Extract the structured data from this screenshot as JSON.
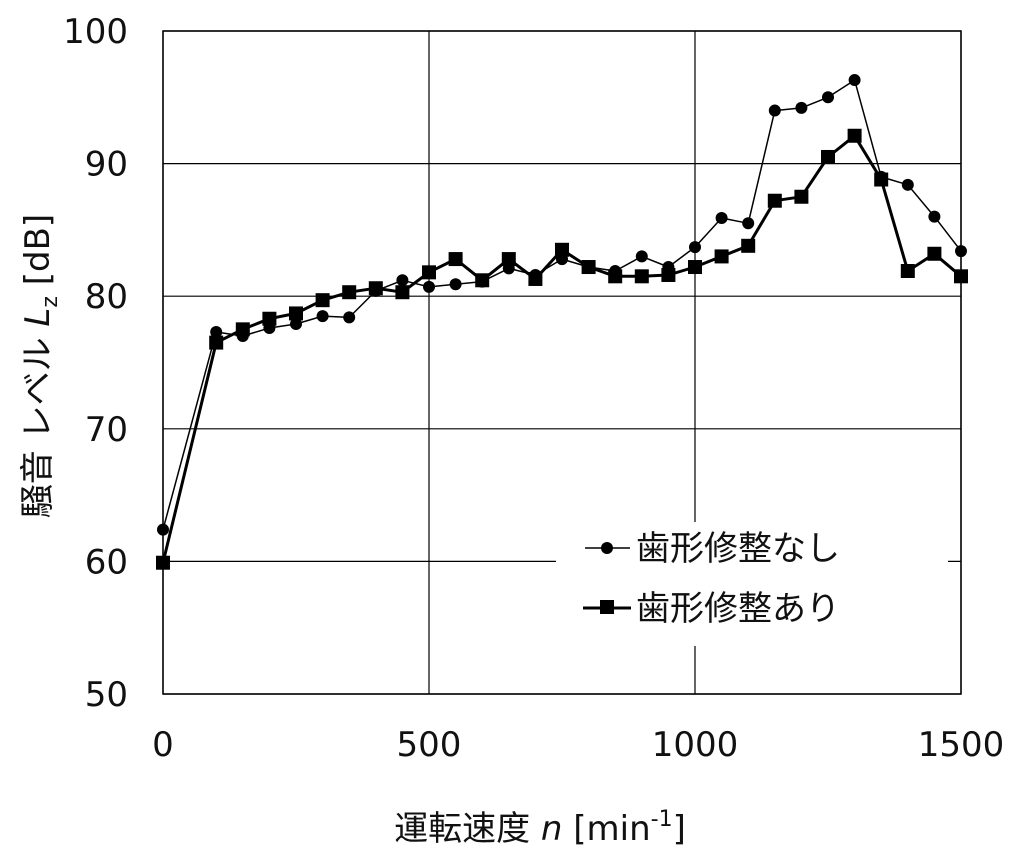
{
  "chart_data": {
    "type": "line",
    "xlabel": {
      "main": "運転速度",
      "var": "n",
      "unit_pre": " [min",
      "unit_sup": "-1",
      "unit_post": "]"
    },
    "ylabel": {
      "main": "騒音 レベル ",
      "var": "L",
      "sub": "z",
      "unit": " [dB]"
    },
    "xlim": [
      0,
      1500
    ],
    "ylim": [
      50,
      100
    ],
    "xticks": [
      0,
      500,
      1000,
      1500
    ],
    "yticks": [
      50,
      60,
      70,
      80,
      90,
      100
    ],
    "grid": true,
    "legend_position": "bottom-right",
    "series": [
      {
        "name": "歯形修整なし",
        "marker": "circle",
        "color": "#000000",
        "x": [
          0,
          100,
          150,
          200,
          250,
          300,
          350,
          400,
          450,
          500,
          550,
          600,
          650,
          700,
          750,
          800,
          850,
          900,
          950,
          1000,
          1050,
          1100,
          1150,
          1200,
          1250,
          1300,
          1350,
          1400,
          1450,
          1500
        ],
        "y": [
          62.4,
          77.3,
          77.0,
          77.6,
          77.9,
          78.5,
          78.4,
          80.4,
          81.2,
          80.7,
          80.9,
          81.1,
          82.1,
          81.6,
          82.8,
          82.2,
          81.9,
          83.0,
          82.2,
          83.7,
          85.9,
          85.5,
          94.0,
          94.2,
          95.0,
          96.3,
          89.0,
          88.4,
          86.0,
          83.4
        ]
      },
      {
        "name": "歯形修整あり",
        "marker": "square",
        "color": "#000000",
        "x": [
          0,
          100,
          150,
          200,
          250,
          300,
          350,
          400,
          450,
          500,
          550,
          600,
          650,
          700,
          750,
          800,
          850,
          900,
          950,
          1000,
          1050,
          1100,
          1150,
          1200,
          1250,
          1300,
          1350,
          1400,
          1450,
          1500
        ],
        "y": [
          59.9,
          76.5,
          77.5,
          78.3,
          78.7,
          79.7,
          80.3,
          80.6,
          80.3,
          81.8,
          82.8,
          81.2,
          82.8,
          81.3,
          83.5,
          82.2,
          81.5,
          81.5,
          81.6,
          82.2,
          83.0,
          83.8,
          87.2,
          87.5,
          90.5,
          92.1,
          88.8,
          81.9,
          83.2,
          81.5
        ]
      }
    ]
  }
}
